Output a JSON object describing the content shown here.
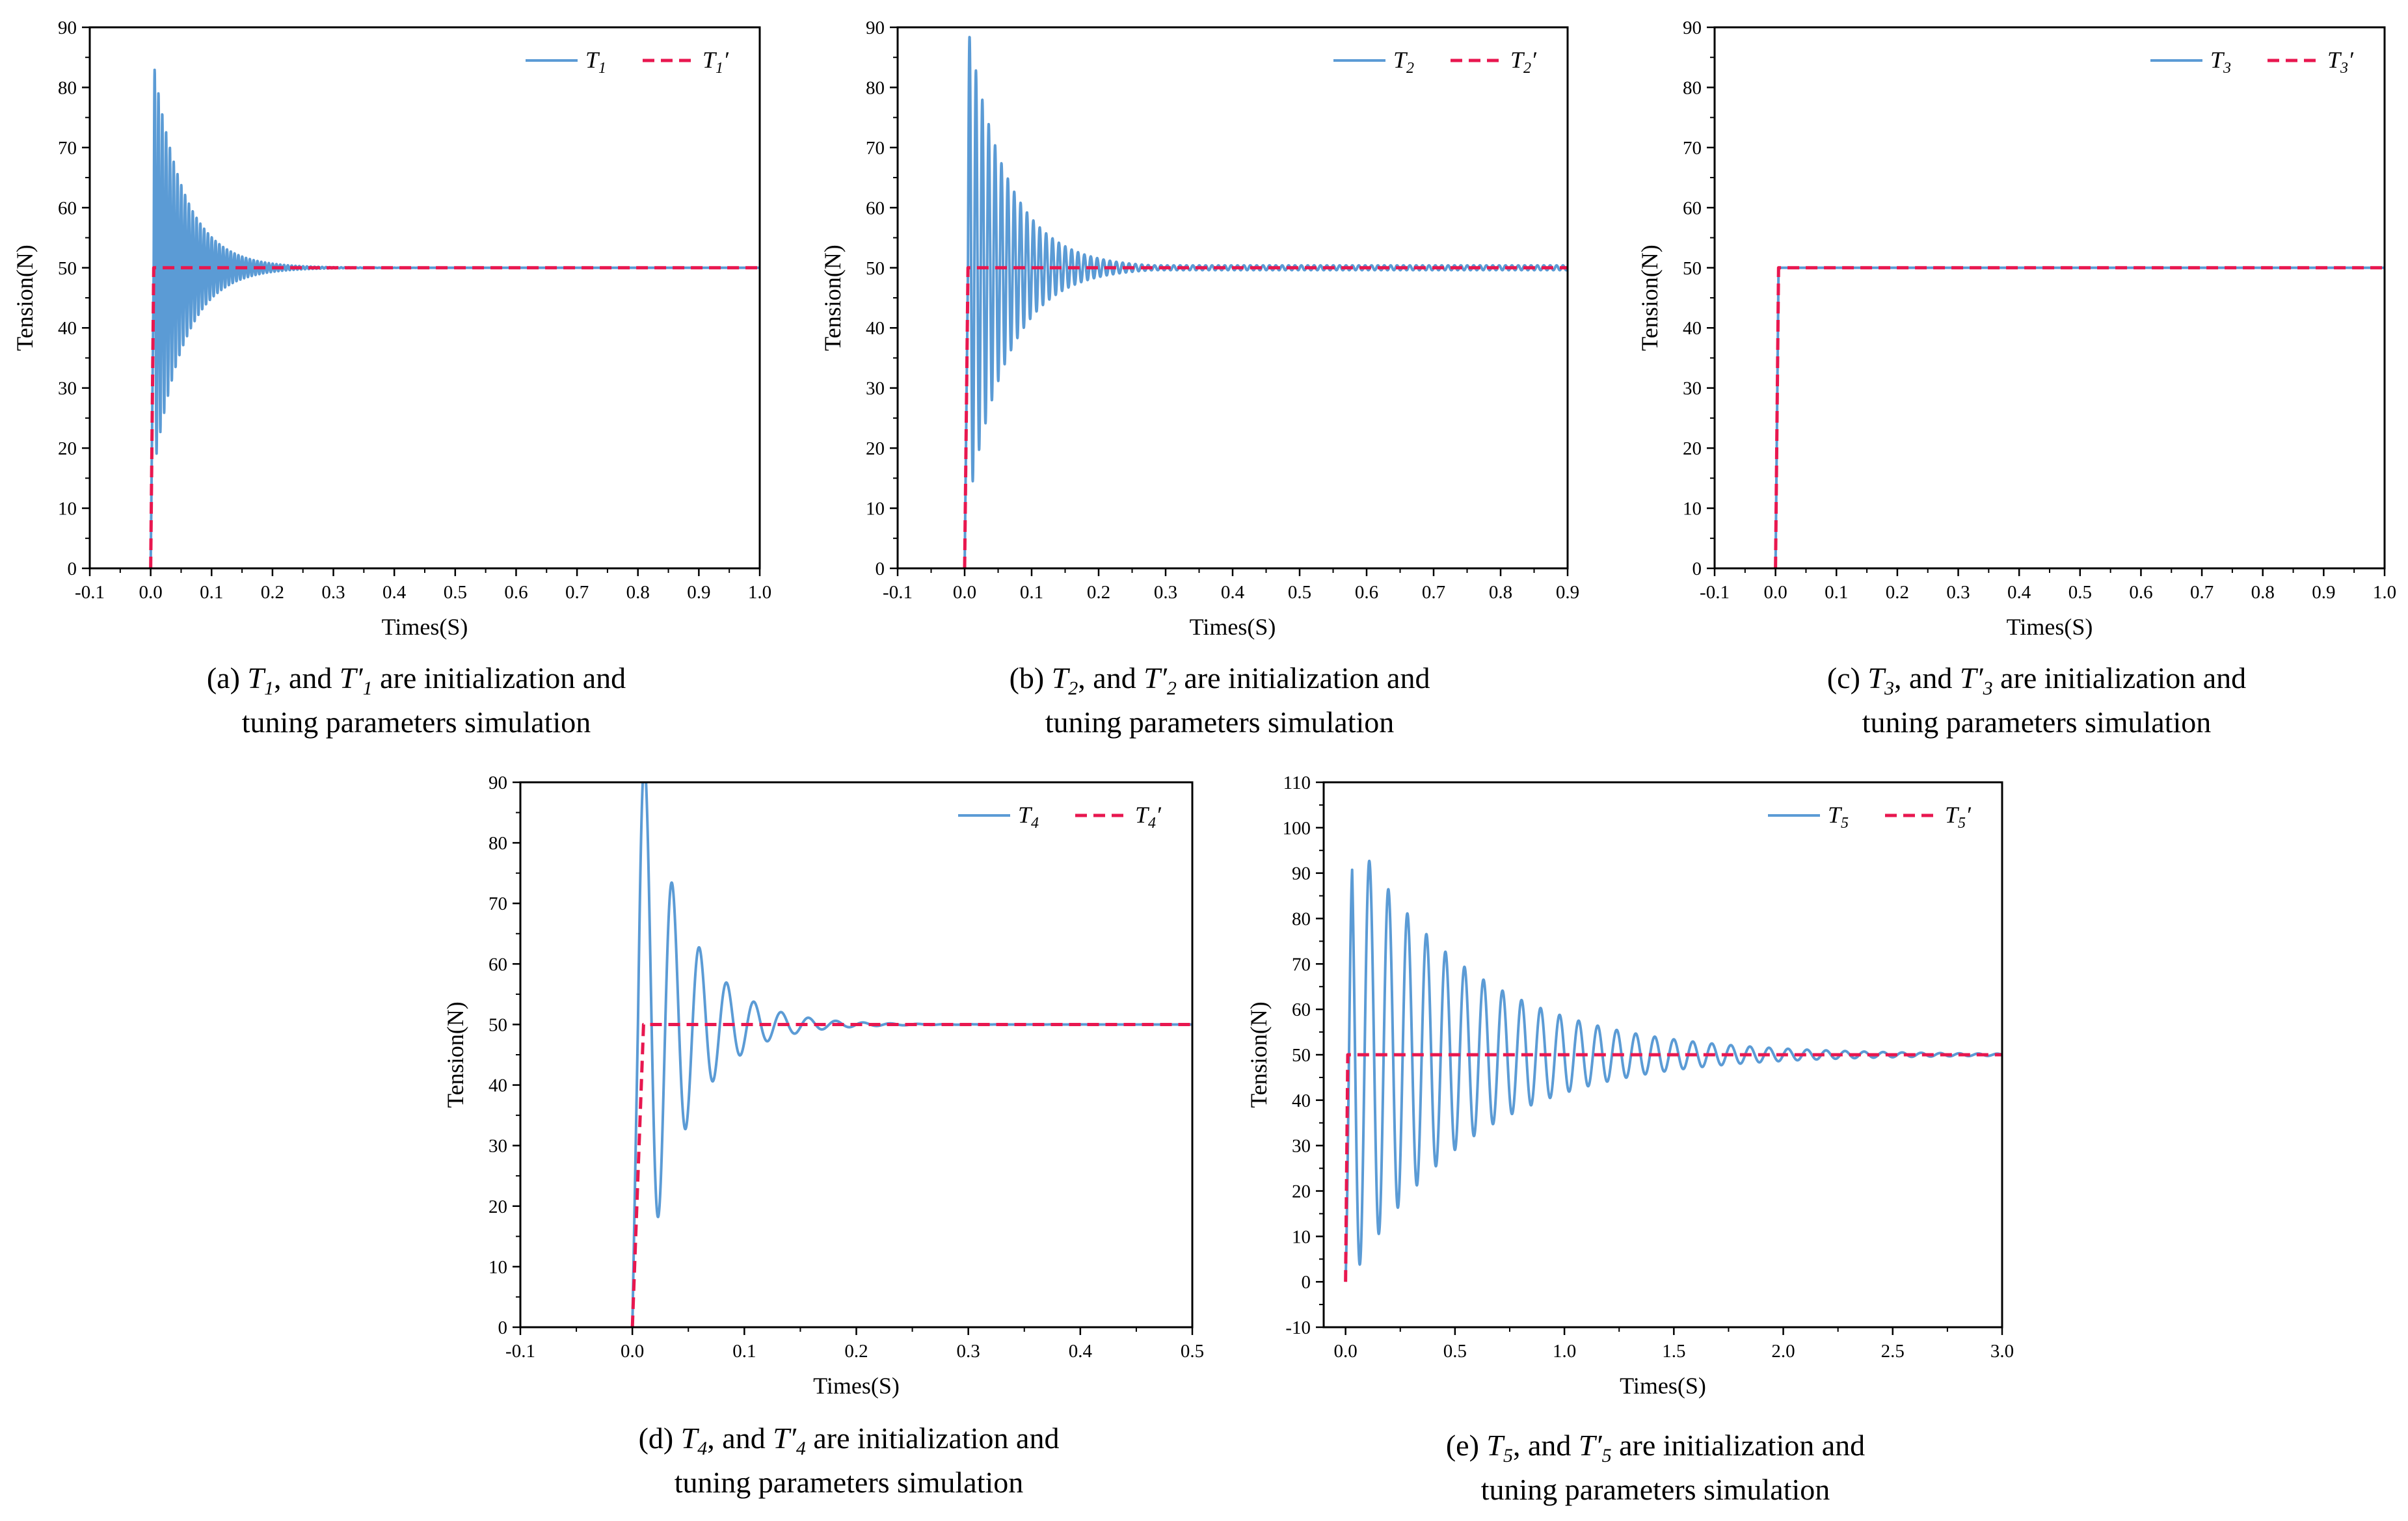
{
  "colors": {
    "measured": "#5B9BD5",
    "reference": "#E8174F",
    "axis": "#000000"
  },
  "chart_data": [
    {
      "id": "a",
      "type": "line",
      "xlabel": "Times(S)",
      "ylabel": "Tension(N)",
      "xlim": [
        -0.1,
        1.0
      ],
      "ylim": [
        0,
        90
      ],
      "xticks": [
        "-0.1",
        "0.0",
        "0.1",
        "0.2",
        "0.3",
        "0.4",
        "0.5",
        "0.6",
        "0.7",
        "0.8",
        "0.9",
        "1.0"
      ],
      "yticks": [
        "0",
        "10",
        "20",
        "30",
        "40",
        "50",
        "60",
        "70",
        "80",
        "90"
      ],
      "legend_position": "top-right",
      "caption": {
        "prefix": "(a) ",
        "var": "T",
        "sub": "1",
        "mid": ", and ",
        "var2": "T",
        "prime": "′",
        "sub2": "1",
        "rest": " are initialization and",
        "line2": "tuning parameters simulation"
      },
      "series": [
        {
          "name_var": "T",
          "name_sub": "1",
          "name_prime": "",
          "style": "solid",
          "color": "#5B9BD5",
          "model": {
            "type": "oscillation",
            "t0": 0.005,
            "target": 50,
            "amp0": 34,
            "tau": 0.05,
            "freq": 160,
            "phase": 0,
            "samples": 4000,
            "xend": 1.0
          }
        },
        {
          "name_var": "T",
          "name_sub": "1",
          "name_prime": "′",
          "style": "dashed",
          "color": "#E8174F",
          "x": [
            0,
            0.005,
            0.005,
            1.0
          ],
          "y": [
            0,
            50,
            50,
            50
          ]
        }
      ]
    },
    {
      "id": "b",
      "type": "line",
      "xlabel": "Times(S)",
      "ylabel": "Tension(N)",
      "xlim": [
        -0.1,
        0.9
      ],
      "ylim": [
        0,
        90
      ],
      "xticks": [
        "-0.1",
        "0.0",
        "0.1",
        "0.2",
        "0.3",
        "0.4",
        "0.5",
        "0.6",
        "0.7",
        "0.8",
        "0.9"
      ],
      "yticks": [
        "0",
        "10",
        "20",
        "30",
        "40",
        "50",
        "60",
        "70",
        "80",
        "90"
      ],
      "legend_position": "top-right",
      "caption": {
        "prefix": "(b) ",
        "var": "T",
        "sub": "2",
        "mid": ", and ",
        "var2": "T",
        "prime": "′",
        "sub2": "2",
        "rest": " are initialization and",
        "line2": "tuning parameters simulation"
      },
      "series": [
        {
          "name_var": "T",
          "name_sub": "2",
          "name_prime": "",
          "style": "solid",
          "color": "#5B9BD5",
          "model": {
            "type": "oscillation",
            "t0": 0.005,
            "target": 50,
            "amp0": 40,
            "tau": 0.06,
            "freq": 105,
            "phase": 0,
            "samples": 4000,
            "xend": 0.9,
            "floor": 0.4
          }
        },
        {
          "name_var": "T",
          "name_sub": "2",
          "name_prime": "′",
          "style": "dashed",
          "color": "#E8174F",
          "x": [
            0,
            0.005,
            0.005,
            0.9
          ],
          "y": [
            0,
            50,
            50,
            50
          ]
        }
      ]
    },
    {
      "id": "c",
      "type": "line",
      "xlabel": "Times(S)",
      "ylabel": "Tension(N)",
      "xlim": [
        -0.1,
        1.0
      ],
      "ylim": [
        0,
        90
      ],
      "xticks": [
        "-0.1",
        "0.0",
        "0.1",
        "0.2",
        "0.3",
        "0.4",
        "0.5",
        "0.6",
        "0.7",
        "0.8",
        "0.9",
        "1.0"
      ],
      "yticks": [
        "0",
        "10",
        "20",
        "30",
        "40",
        "50",
        "60",
        "70",
        "80",
        "90"
      ],
      "legend_position": "top-right",
      "caption": {
        "prefix": "(c) ",
        "var": "T",
        "sub": "3",
        "mid": ", and ",
        "var2": "T",
        "prime": "′",
        "sub2": "3",
        "rest": " are initialization and",
        "line2": "tuning parameters simulation"
      },
      "series": [
        {
          "name_var": "T",
          "name_sub": "3",
          "name_prime": "",
          "style": "solid",
          "color": "#5B9BD5",
          "x": [
            0,
            0.005,
            0.005,
            1.0
          ],
          "y": [
            0,
            50,
            50,
            50
          ]
        },
        {
          "name_var": "T",
          "name_sub": "3",
          "name_prime": "′",
          "style": "dashed",
          "color": "#E8174F",
          "x": [
            0,
            0.005,
            0.005,
            1.0
          ],
          "y": [
            0,
            50,
            50,
            50
          ]
        }
      ]
    },
    {
      "id": "d",
      "type": "line",
      "xlabel": "Times(S)",
      "ylabel": "Tension(N)",
      "xlim": [
        -0.1,
        0.5
      ],
      "ylim": [
        0,
        90
      ],
      "xticks": [
        "-0.1",
        "0.0",
        "0.1",
        "0.2",
        "0.3",
        "0.4",
        "0.5"
      ],
      "yticks": [
        "0",
        "10",
        "20",
        "30",
        "40",
        "50",
        "60",
        "70",
        "80",
        "90"
      ],
      "legend_position": "top-right",
      "caption": {
        "prefix": "(d) ",
        "var": "T",
        "sub": "4",
        "mid": ", and ",
        "var2": "T",
        "prime": "′",
        "sub2": "4",
        "rest": " are initialization and",
        "line2": "tuning parameters simulation"
      },
      "series": [
        {
          "name_var": "T",
          "name_sub": "4",
          "name_prime": "",
          "style": "solid",
          "color": "#5B9BD5",
          "model": {
            "type": "oscillation",
            "t0": 0.005,
            "target": 50,
            "amp0": 50,
            "tau": 0.04,
            "freq": 41,
            "phase": 0,
            "samples": 3000,
            "xend": 0.5,
            "cosine": true
          }
        },
        {
          "name_var": "T",
          "name_sub": "4",
          "name_prime": "′",
          "style": "dashed",
          "color": "#E8174F",
          "x": [
            0,
            0.01,
            0.01,
            0.5
          ],
          "y": [
            0,
            50,
            50,
            50
          ]
        }
      ]
    },
    {
      "id": "e",
      "type": "line",
      "xlabel": "Times(S)",
      "ylabel": "Tension(N)",
      "xlim": [
        -0.1,
        3.0
      ],
      "ylim": [
        -10,
        110
      ],
      "xticks": [
        "0.0",
        "0.5",
        "1.0",
        "1.5",
        "2.0",
        "2.5",
        "3.0"
      ],
      "xtick_values": [
        0,
        0.5,
        1.0,
        1.5,
        2.0,
        2.5,
        3.0
      ],
      "yticks": [
        "-10",
        "0",
        "10",
        "20",
        "30",
        "40",
        "50",
        "60",
        "70",
        "80",
        "90",
        "100",
        "110"
      ],
      "legend_position": "top-right",
      "caption": {
        "prefix": "(e) ",
        "var": "T",
        "sub": "5",
        "mid": ", and ",
        "var2": "T",
        "prime": "′",
        "sub2": "5",
        "rest": " are initialization and",
        "line2": "tuning parameters simulation"
      },
      "series": [
        {
          "name_var": "T",
          "name_sub": "5",
          "name_prime": "",
          "style": "solid",
          "color": "#5B9BD5",
          "model": {
            "type": "oscillation",
            "t0": 0.0,
            "target": 50,
            "amp0": 52,
            "tau": 0.55,
            "freq": 11.5,
            "phase": 0,
            "samples": 5000,
            "xend": 3.0,
            "cosine": true,
            "ramp": 0.03
          }
        },
        {
          "name_var": "T",
          "name_sub": "5",
          "name_prime": "′",
          "style": "dashed",
          "color": "#E8174F",
          "x": [
            0,
            0.01,
            0.01,
            3.0
          ],
          "y": [
            0,
            50,
            50,
            50
          ]
        }
      ]
    }
  ]
}
